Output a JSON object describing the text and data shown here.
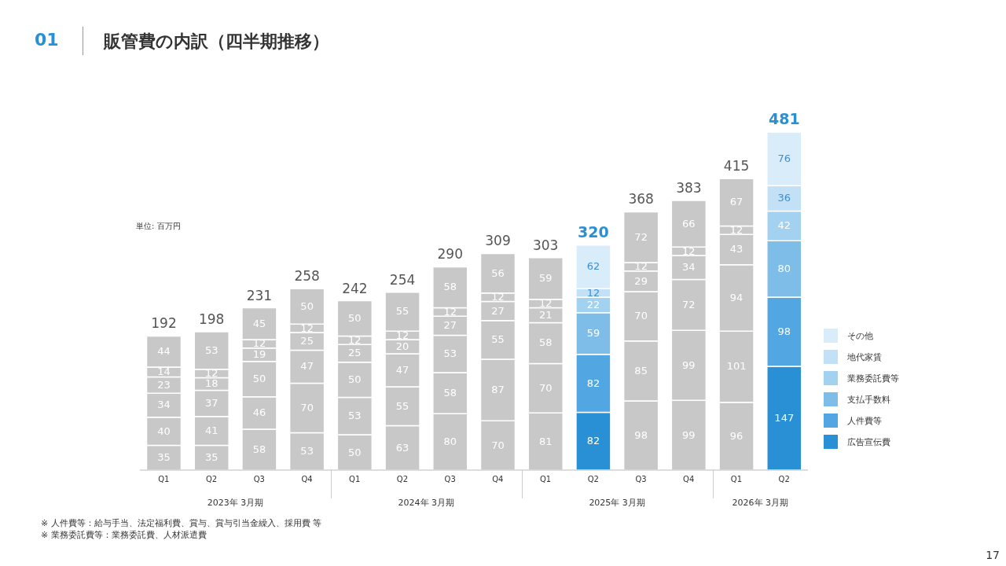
{
  "chart_data": {
    "type": "bar",
    "title": "販管費の内訳（四半期推移）",
    "ylabel": "単位: 百万円",
    "stacked": true,
    "data_labels": true,
    "legend": "right",
    "categories": [
      "Q1",
      "Q2",
      "Q3",
      "Q4",
      "Q1",
      "Q2",
      "Q3",
      "Q4",
      "Q1",
      "Q2",
      "Q3",
      "Q4",
      "Q1",
      "Q2"
    ],
    "series": [
      {
        "name": "広告宣伝費",
        "color": "#2a90d6",
        "values": [
          35,
          35,
          58,
          53,
          50,
          63,
          80,
          70,
          81,
          82,
          98,
          99,
          96,
          147
        ],
        "colors": [
          "#c8c8c8",
          "#c8c8c8",
          "#c8c8c8",
          "#c8c8c8",
          "#c8c8c8",
          "#c8c8c8",
          "#c8c8c8",
          "#c8c8c8",
          "#c8c8c8",
          "#2a90d6",
          "#c8c8c8",
          "#c8c8c8",
          "#c8c8c8",
          "#2a90d6"
        ]
      },
      {
        "name": "人件費等",
        "color": "#52a6e2",
        "values": [
          40,
          41,
          46,
          70,
          53,
          55,
          58,
          87,
          70,
          82,
          85,
          99,
          101,
          98
        ],
        "colors": [
          "#c8c8c8",
          "#c8c8c8",
          "#c8c8c8",
          "#c8c8c8",
          "#c8c8c8",
          "#c8c8c8",
          "#c8c8c8",
          "#c8c8c8",
          "#c8c8c8",
          "#52a6e2",
          "#c8c8c8",
          "#c8c8c8",
          "#c8c8c8",
          "#52a6e2"
        ]
      },
      {
        "name": "支払手数料",
        "color": "#7fbde9",
        "values": [
          34,
          37,
          50,
          47,
          50,
          47,
          53,
          55,
          58,
          59,
          70,
          72,
          94,
          80
        ],
        "colors": [
          "#c8c8c8",
          "#c8c8c8",
          "#c8c8c8",
          "#c8c8c8",
          "#c8c8c8",
          "#c8c8c8",
          "#c8c8c8",
          "#c8c8c8",
          "#c8c8c8",
          "#7fbde9",
          "#c8c8c8",
          "#c8c8c8",
          "#c8c8c8",
          "#7fbde9"
        ]
      },
      {
        "name": "業務委託費等",
        "color": "#a3d1f0",
        "values": [
          23,
          18,
          19,
          25,
          25,
          20,
          27,
          27,
          21,
          22,
          29,
          34,
          43,
          42
        ],
        "colors": [
          "#c8c8c8",
          "#c8c8c8",
          "#c8c8c8",
          "#c8c8c8",
          "#c8c8c8",
          "#c8c8c8",
          "#c8c8c8",
          "#c8c8c8",
          "#c8c8c8",
          "#a3d1f0",
          "#c8c8c8",
          "#c8c8c8",
          "#c8c8c8",
          "#a3d1f0"
        ]
      },
      {
        "name": "地代家賃",
        "color": "#c2e1f6",
        "values": [
          14,
          12,
          12,
          12,
          12,
          12,
          12,
          12,
          12,
          12,
          12,
          12,
          12,
          36
        ],
        "colors": [
          "#c8c8c8",
          "#c8c8c8",
          "#c8c8c8",
          "#c8c8c8",
          "#c8c8c8",
          "#c8c8c8",
          "#c8c8c8",
          "#c8c8c8",
          "#c8c8c8",
          "#c2e1f6",
          "#c8c8c8",
          "#c8c8c8",
          "#c8c8c8",
          "#c2e1f6"
        ]
      },
      {
        "name": "その他",
        "color": "#d9ecf9",
        "values": [
          44,
          53,
          45,
          50,
          50,
          55,
          58,
          56,
          59,
          62,
          72,
          66,
          67,
          76
        ],
        "colors": [
          "#c8c8c8",
          "#c8c8c8",
          "#c8c8c8",
          "#c8c8c8",
          "#c8c8c8",
          "#c8c8c8",
          "#c8c8c8",
          "#c8c8c8",
          "#c8c8c8",
          "#d9ecf9",
          "#c8c8c8",
          "#c8c8c8",
          "#c8c8c8",
          "#d9ecf9"
        ]
      }
    ],
    "totals": [
      "192",
      "198",
      "231",
      "258",
      "242",
      "254",
      "290",
      "309",
      "303",
      "320",
      "368",
      "383",
      "415",
      "481"
    ],
    "annotations": [
      "2023年 3月期",
      "2024年 3月期",
      "2025年 3月期",
      "2026年 3月期",
      "※  人件費等：給与手当、法定福利費、賞与、賞与引当金繰入、採用費 等",
      "※  業務委託費等：業務委託費、人材派遣費",
      "17",
      "01"
    ]
  }
}
